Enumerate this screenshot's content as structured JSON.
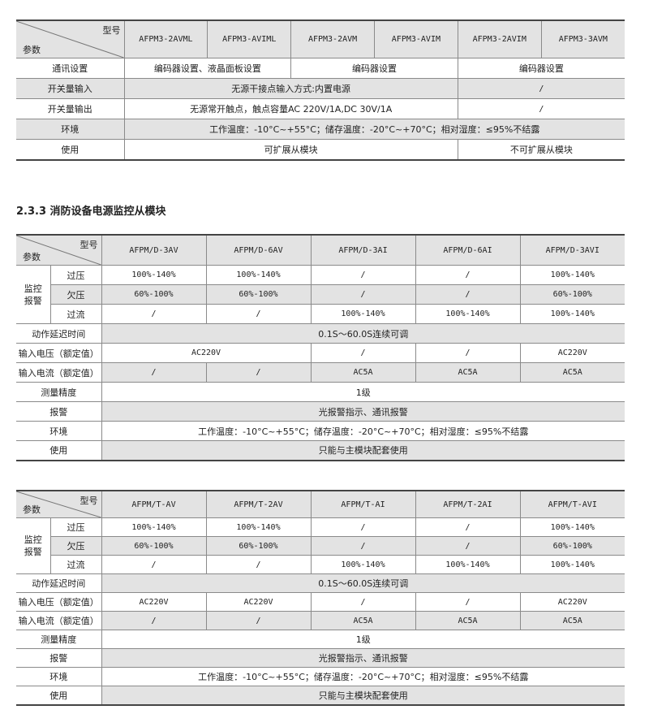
{
  "section_title": "2.3.3 消防设备电源监控从模块",
  "corner": {
    "model": "型号",
    "param": "参数"
  },
  "table1": {
    "models": [
      "AFPM3-2AVML",
      "AFPM3-AVIML",
      "AFPM3-2AVM",
      "AFPM3-AVIM",
      "AFPM3-2AVIM",
      "AFPM3-3AVM"
    ],
    "rows": [
      {
        "label": "通讯设置",
        "shade": false,
        "cells": [
          {
            "text": "编码器设置、液晶面板设置",
            "span": 2
          },
          {
            "text": "编码器设置",
            "span": 2
          },
          {
            "text": "编码器设置",
            "span": 2
          }
        ]
      },
      {
        "label": "开关量输入",
        "shade": true,
        "cells": [
          {
            "text": "无源干接点输入方式:内置电源",
            "span": 4
          },
          {
            "text": "/",
            "span": 2
          }
        ]
      },
      {
        "label": "开关量输出",
        "shade": false,
        "cells": [
          {
            "text": "无源常开触点，触点容量AC 220V/1A,DC 30V/1A",
            "span": 4
          },
          {
            "text": "/",
            "span": 2
          }
        ]
      },
      {
        "label": "环境",
        "shade": true,
        "cells": [
          {
            "text": "工作温度：-10°C~+55°C；储存温度：-20°C~+70°C；相对湿度：≤95%不结露",
            "span": 6
          }
        ]
      },
      {
        "label": "使用",
        "shade": false,
        "cells": [
          {
            "text": "可扩展从模块",
            "span": 4
          },
          {
            "text": "不可扩展从模块",
            "span": 2
          }
        ]
      }
    ]
  },
  "table2": {
    "models": [
      "AFPM/D-3AV",
      "AFPM/D-6AV",
      "AFPM/D-3AI",
      "AFPM/D-6AI",
      "AFPM/D-3AVI"
    ],
    "group_label": "监控报警",
    "group_rows": [
      {
        "label": "过压",
        "shade": false,
        "cells": [
          {
            "text": "100%-140%",
            "span": 1
          },
          {
            "text": "100%-140%",
            "span": 1
          },
          {
            "text": "/",
            "span": 1
          },
          {
            "text": "/",
            "span": 1
          },
          {
            "text": "100%-140%",
            "span": 1
          }
        ]
      },
      {
        "label": "欠压",
        "shade": true,
        "cells": [
          {
            "text": "60%-100%",
            "span": 1
          },
          {
            "text": "60%-100%",
            "span": 1
          },
          {
            "text": "/",
            "span": 1
          },
          {
            "text": "/",
            "span": 1
          },
          {
            "text": "60%-100%",
            "span": 1
          }
        ]
      },
      {
        "label": "过流",
        "shade": false,
        "cells": [
          {
            "text": "/",
            "span": 1
          },
          {
            "text": "/",
            "span": 1
          },
          {
            "text": "100%-140%",
            "span": 1
          },
          {
            "text": "100%-140%",
            "span": 1
          },
          {
            "text": "100%-140%",
            "span": 1
          }
        ]
      }
    ],
    "rows": [
      {
        "label": "动作延迟时间",
        "shade": true,
        "cells": [
          {
            "text": "0.1S～60.0S连续可调",
            "span": 5
          }
        ]
      },
      {
        "label": "输入电压（额定值）",
        "shade": false,
        "cells": [
          {
            "text": "AC220V",
            "span": 2
          },
          {
            "text": "/",
            "span": 1
          },
          {
            "text": "/",
            "span": 1
          },
          {
            "text": "AC220V",
            "span": 1
          }
        ]
      },
      {
        "label": "输入电流（额定值）",
        "shade": true,
        "cells": [
          {
            "text": "/",
            "span": 1
          },
          {
            "text": "/",
            "span": 1
          },
          {
            "text": "AC5A",
            "span": 1
          },
          {
            "text": "AC5A",
            "span": 1
          },
          {
            "text": "AC5A",
            "span": 1
          }
        ]
      },
      {
        "label": "测量精度",
        "shade": false,
        "cells": [
          {
            "text": "1级",
            "span": 5
          }
        ]
      },
      {
        "label": "报警",
        "shade": true,
        "cells": [
          {
            "text": "光报警指示、通讯报警",
            "span": 5
          }
        ]
      },
      {
        "label": "环境",
        "shade": false,
        "cells": [
          {
            "text": "工作温度：-10°C~+55°C；储存温度：-20°C~+70°C；相对湿度：≤95%不结露",
            "span": 5
          }
        ]
      },
      {
        "label": "使用",
        "shade": true,
        "cells": [
          {
            "text": "只能与主模块配套使用",
            "span": 5
          }
        ]
      }
    ]
  },
  "table3": {
    "models": [
      "AFPM/T-AV",
      "AFPM/T-2AV",
      "AFPM/T-AI",
      "AFPM/T-2AI",
      "AFPM/T-AVI"
    ],
    "group_label": "监控报警",
    "group_rows": [
      {
        "label": "过压",
        "shade": false,
        "cells": [
          {
            "text": "100%-140%",
            "span": 1
          },
          {
            "text": "100%-140%",
            "span": 1
          },
          {
            "text": "/",
            "span": 1
          },
          {
            "text": "/",
            "span": 1
          },
          {
            "text": "100%-140%",
            "span": 1
          }
        ]
      },
      {
        "label": "欠压",
        "shade": true,
        "cells": [
          {
            "text": "60%-100%",
            "span": 1
          },
          {
            "text": "60%-100%",
            "span": 1
          },
          {
            "text": "/",
            "span": 1
          },
          {
            "text": "/",
            "span": 1
          },
          {
            "text": "60%-100%",
            "span": 1
          }
        ]
      },
      {
        "label": "过流",
        "shade": false,
        "cells": [
          {
            "text": "/",
            "span": 1
          },
          {
            "text": "/",
            "span": 1
          },
          {
            "text": "100%-140%",
            "span": 1
          },
          {
            "text": "100%-140%",
            "span": 1
          },
          {
            "text": "100%-140%",
            "span": 1
          }
        ]
      }
    ],
    "rows": [
      {
        "label": "动作延迟时间",
        "shade": true,
        "cells": [
          {
            "text": "0.1S～60.0S连续可调",
            "span": 5
          }
        ]
      },
      {
        "label": "输入电压（额定值）",
        "shade": false,
        "cells": [
          {
            "text": "AC220V",
            "span": 1
          },
          {
            "text": "AC220V",
            "span": 1
          },
          {
            "text": "/",
            "span": 1
          },
          {
            "text": "/",
            "span": 1
          },
          {
            "text": "AC220V",
            "span": 1
          }
        ]
      },
      {
        "label": "输入电流（额定值）",
        "shade": true,
        "cells": [
          {
            "text": "/",
            "span": 1
          },
          {
            "text": "/",
            "span": 1
          },
          {
            "text": "AC5A",
            "span": 1
          },
          {
            "text": "AC5A",
            "span": 1
          },
          {
            "text": "AC5A",
            "span": 1
          }
        ]
      },
      {
        "label": "测量精度",
        "shade": false,
        "cells": [
          {
            "text": "1级",
            "span": 5
          }
        ]
      },
      {
        "label": "报警",
        "shade": true,
        "cells": [
          {
            "text": "光报警指示、通讯报警",
            "span": 5
          }
        ]
      },
      {
        "label": "环境",
        "shade": false,
        "cells": [
          {
            "text": "工作温度：-10°C~+55°C；储存温度：-20°C~+70°C；相对湿度：≤95%不结露",
            "span": 5
          }
        ]
      },
      {
        "label": "使用",
        "shade": true,
        "cells": [
          {
            "text": "只能与主模块配套使用",
            "span": 5
          }
        ]
      }
    ]
  }
}
